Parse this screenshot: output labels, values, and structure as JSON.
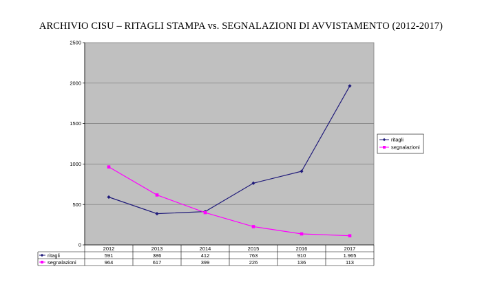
{
  "chart_data": {
    "type": "line",
    "title": "ARCHIVIO CISU – RITAGLI STAMPA vs. SEGNALAZIONI DI AVVISTAMENTO (2012-2017)",
    "categories": [
      "2012",
      "2013",
      "2014",
      "2015",
      "2016",
      "2017"
    ],
    "y_ticks": [
      "0",
      "500",
      "1000",
      "1500",
      "2000",
      "2500"
    ],
    "ylim": [
      0,
      2500
    ],
    "grid": true,
    "legend_position": "right",
    "series": [
      {
        "name": "ritagli",
        "color": "#1f1a7a",
        "marker": "diamond",
        "values": [
          591,
          386,
          412,
          763,
          910,
          1965
        ],
        "labels": [
          "591",
          "386",
          "412",
          "763",
          "910",
          "1.965"
        ]
      },
      {
        "name": "segnalazioni",
        "color": "#ff00ff",
        "marker": "square",
        "values": [
          964,
          617,
          399,
          226,
          136,
          113
        ],
        "labels": [
          "964",
          "617",
          "399",
          "226",
          "136",
          "113"
        ]
      }
    ]
  }
}
